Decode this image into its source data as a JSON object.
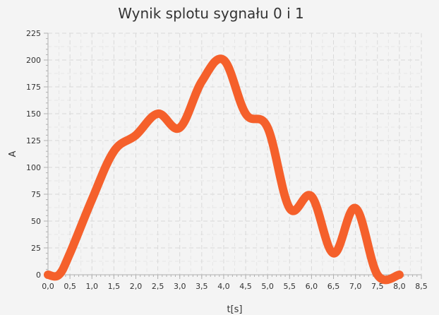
{
  "chart_data": {
    "type": "line",
    "title": "Wynik splotu sygnału 0 i 1",
    "xlabel": "t[s]",
    "ylabel": "A",
    "xlim": [
      0,
      8.5
    ],
    "ylim": [
      0,
      225
    ],
    "x_ticks": [
      "0,0",
      "0,5",
      "1,0",
      "1,5",
      "2,0",
      "2,5",
      "3,0",
      "3,5",
      "4,0",
      "4,5",
      "5,0",
      "5,5",
      "6,0",
      "6,5",
      "7,0",
      "7,5",
      "8,0",
      "8,5"
    ],
    "y_ticks": [
      "0",
      "25",
      "50",
      "75",
      "100",
      "125",
      "150",
      "175",
      "200",
      "225"
    ],
    "grid": true,
    "series": [
      {
        "color": "#f5602b",
        "x": [
          0,
          0.25,
          0.5,
          1.0,
          1.5,
          2.0,
          2.5,
          3.0,
          3.5,
          4.0,
          4.5,
          5.0,
          5.5,
          6.0,
          6.5,
          7.0,
          7.5,
          8.0
        ],
        "y": [
          0,
          0,
          20,
          70,
          115,
          130,
          150,
          137,
          180,
          200,
          150,
          137,
          62,
          73,
          20,
          62,
          0,
          0
        ]
      }
    ]
  }
}
